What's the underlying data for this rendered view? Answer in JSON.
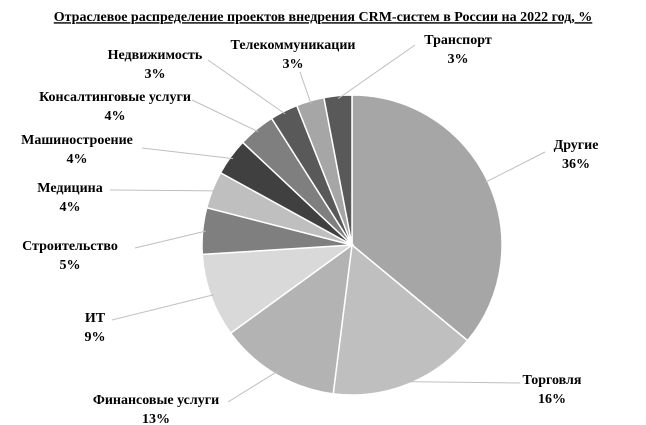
{
  "chart_data": {
    "type": "pie",
    "title": "Отраслевое распределение проектов внедрения CRM-систем в России на 2022 год, %",
    "categories": [
      "Другие",
      "Торговля",
      "Финансовые услуги",
      "ИТ",
      "Строительство",
      "Медицина",
      "Машиностроение",
      "Консалтинговые услуги",
      "Недвижимость",
      "Телекоммуникации",
      "Транспорт"
    ],
    "values": [
      36,
      16,
      13,
      9,
      5,
      4,
      4,
      4,
      3,
      3,
      3
    ],
    "value_labels": [
      "36%",
      "16%",
      "13%",
      "9%",
      "5%",
      "4%",
      "4%",
      "4%",
      "3%",
      "3%",
      "3%"
    ],
    "colors": [
      "#a6a6a6",
      "#bfbfbf",
      "#b3b3b3",
      "#d9d9d9",
      "#7f7f7f",
      "#bfbfbf",
      "#404040",
      "#7f7f7f",
      "#595959",
      "#a6a6a6",
      "#595959"
    ]
  }
}
